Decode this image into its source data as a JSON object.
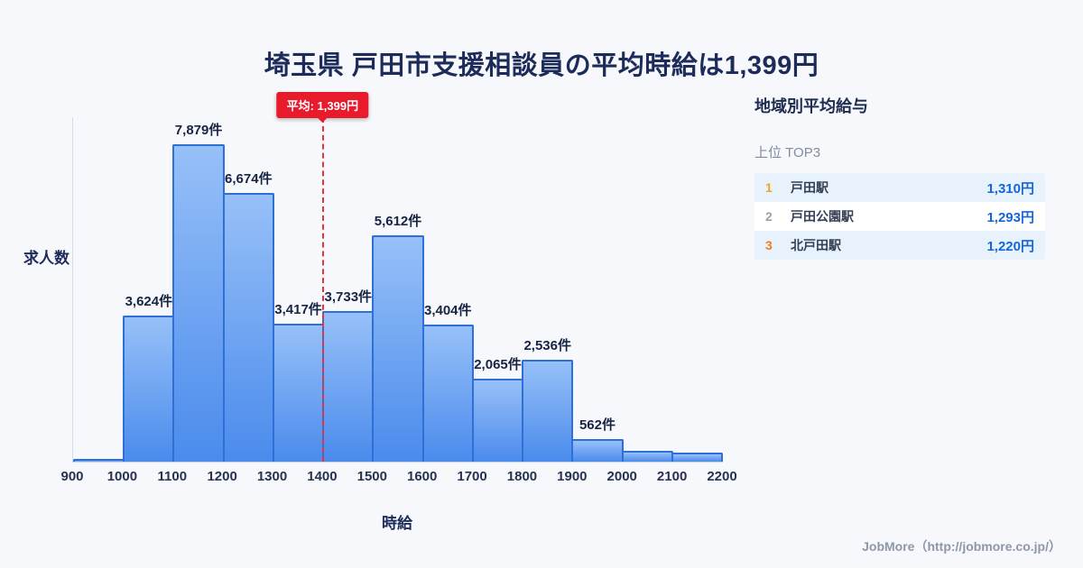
{
  "page_title": "埼玉県 戸田市支援相談員の平均時給は1,399円",
  "chart_data": {
    "type": "bar",
    "title": "埼玉県 戸田市支援相談員の平均時給は1,399円",
    "xlabel": "時給",
    "ylabel": "求人数",
    "x_range": [
      900,
      2200
    ],
    "ymax": 8050,
    "grid": false,
    "x_ticks": [
      900,
      1000,
      1100,
      1200,
      1300,
      1400,
      1500,
      1600,
      1700,
      1800,
      1900,
      2000,
      2100,
      2200
    ],
    "bins": [
      {
        "range": [
          900,
          1000
        ],
        "count": 70,
        "label": ""
      },
      {
        "range": [
          1000,
          1100
        ],
        "count": 3624,
        "label": "3,624件"
      },
      {
        "range": [
          1100,
          1200
        ],
        "count": 7879,
        "label": "7,879件"
      },
      {
        "range": [
          1200,
          1300
        ],
        "count": 6674,
        "label": "6,674件"
      },
      {
        "range": [
          1300,
          1400
        ],
        "count": 3417,
        "label": "3,417件"
      },
      {
        "range": [
          1400,
          1500
        ],
        "count": 3733,
        "label": "3,733件"
      },
      {
        "range": [
          1500,
          1600
        ],
        "count": 5612,
        "label": "5,612件"
      },
      {
        "range": [
          1600,
          1700
        ],
        "count": 3404,
        "label": "3,404件"
      },
      {
        "range": [
          1700,
          1800
        ],
        "count": 2065,
        "label": "2,065件"
      },
      {
        "range": [
          1800,
          1900
        ],
        "count": 2536,
        "label": "2,536件"
      },
      {
        "range": [
          1900,
          2000
        ],
        "count": 562,
        "label": "562件"
      },
      {
        "range": [
          2000,
          2100
        ],
        "count": 270,
        "label": ""
      },
      {
        "range": [
          2100,
          2200
        ],
        "count": 225,
        "label": ""
      }
    ],
    "average_line": {
      "value": 1399,
      "label": "平均: 1,399円",
      "color": "#e8323c"
    },
    "bar_fill_top": "#97c0f8",
    "bar_fill_bottom": "#4a8bec",
    "bar_border": "#2e6fd8"
  },
  "sidebar": {
    "heading": "地域別平均給与",
    "subheading": "上位 TOP3",
    "rows": [
      {
        "rank": "1",
        "rank_color": "#f2a71b",
        "name": "戸田駅",
        "value": "1,310円"
      },
      {
        "rank": "2",
        "rank_color": "#98a1b0",
        "name": "戸田公園駅",
        "value": "1,293円"
      },
      {
        "rank": "3",
        "rank_color": "#ef7d1a",
        "name": "北戸田駅",
        "value": "1,220円"
      }
    ],
    "value_color": "#1566d6"
  },
  "footer": {
    "credit": "JobMore（http://jobmore.co.jp/）"
  }
}
